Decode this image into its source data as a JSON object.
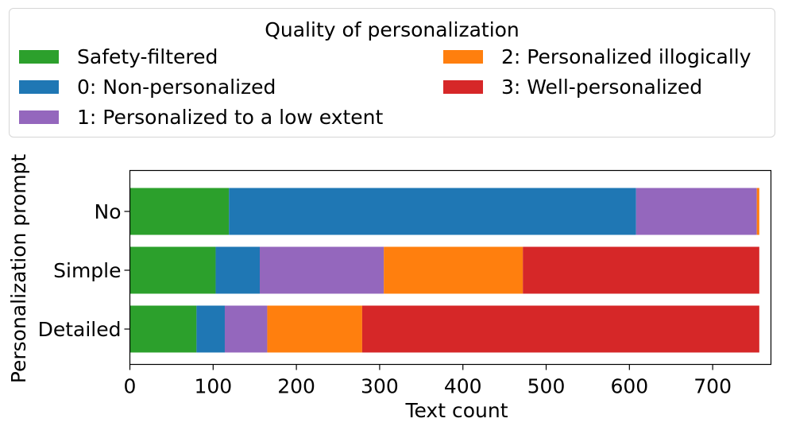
{
  "legend": {
    "title": "Quality of personalization",
    "placement": "top, outside plot, two columns"
  },
  "chart_data": {
    "type": "bar",
    "orientation": "horizontal",
    "stacked": true,
    "xlabel": "Text count",
    "ylabel": "Personalization prompt",
    "categories": [
      "No",
      "Simple",
      "Detailed"
    ],
    "xlim": [
      0,
      770
    ],
    "xticks": [
      0,
      100,
      200,
      300,
      400,
      500,
      600,
      700
    ],
    "grid": false,
    "series": [
      {
        "name": "Safety-filtered",
        "color": "#2ca02c",
        "values": [
          119,
          103,
          80
        ]
      },
      {
        "name": "0: Non-personalized",
        "color": "#1f77b4",
        "values": [
          489,
          53,
          34
        ]
      },
      {
        "name": "1: Personalized to a low extent",
        "color": "#9467bd",
        "values": [
          145,
          149,
          51
        ]
      },
      {
        "name": "2: Personalized illogically",
        "color": "#ff7f0e",
        "values": [
          3,
          167,
          114
        ]
      },
      {
        "name": "3: Well-personalized",
        "color": "#d62728",
        "values": [
          0,
          284,
          477
        ]
      }
    ]
  }
}
